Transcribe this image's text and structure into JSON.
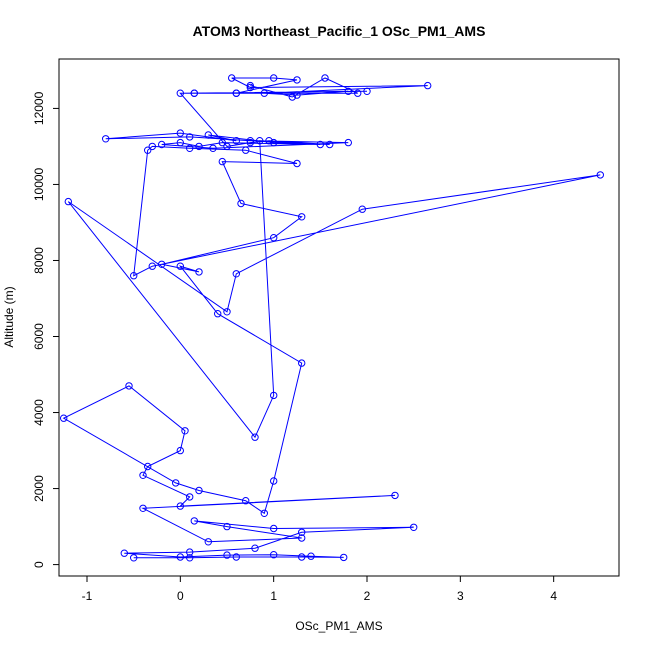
{
  "chart_data": {
    "type": "line",
    "title": "ATOM3 Northeast_Pacific_1 OSc_PM1_AMS",
    "xlabel": "OSc_PM1_AMS",
    "ylabel": "Altitude (m)",
    "xlim": [
      -1.3,
      4.7
    ],
    "ylim": [
      -300,
      13300
    ],
    "x_ticks": [
      -1,
      0,
      1,
      2,
      3,
      4
    ],
    "y_ticks": [
      0,
      2000,
      4000,
      6000,
      8000,
      10000,
      12000
    ],
    "grid": false,
    "legend": "none",
    "markers": "open-circle",
    "color": "#0000ff",
    "series": [
      {
        "x": [
          -0.5,
          0.1,
          0.6,
          1.3,
          1.75,
          1.4,
          1.0,
          0.5,
          0.0,
          -0.6,
          0.1,
          0.8,
          1.3,
          2.5,
          1.0,
          0.15,
          0.5,
          1.3,
          0.3,
          -0.4,
          2.3,
          0.0,
          0.1,
          -0.4,
          -0.35,
          0.0,
          0.05,
          -0.55,
          -1.25,
          -0.05,
          0.2,
          0.7,
          0.9,
          1.0,
          1.3,
          0.4,
          0.0,
          0.2,
          -0.2,
          1.0,
          1.3,
          0.65,
          0.45,
          1.25,
          0.7,
          0.1,
          -0.3,
          -0.35,
          -0.5,
          -0.3,
          4.5,
          1.95,
          0.6,
          0.5,
          -1.2,
          0.8,
          1.0,
          0.85,
          1.5,
          0.45,
          0.2,
          0.0,
          -0.2,
          0.35,
          1.8,
          0.75,
          0.1,
          -0.8,
          0.0,
          0.6,
          0.3,
          1.0,
          1.6,
          0.95,
          0.75,
          0.5,
          0.0,
          2.0,
          0.15,
          0.6,
          1.8,
          1.25,
          0.9,
          2.65,
          0.75,
          0.55,
          1.0,
          1.25,
          0.6,
          0.15,
          1.9,
          1.55,
          1.2,
          0.75
        ],
        "y": [
          180,
          180,
          200,
          200,
          190,
          220,
          260,
          250,
          200,
          300,
          330,
          430,
          850,
          980,
          950,
          1150,
          1000,
          700,
          600,
          1480,
          1820,
          1540,
          1780,
          2350,
          2580,
          3000,
          3520,
          4700,
          3850,
          2150,
          1950,
          1680,
          1350,
          2200,
          5300,
          6600,
          7850,
          7700,
          7900,
          8600,
          9150,
          9500,
          10600,
          10550,
          10900,
          10950,
          11000,
          10900,
          7600,
          7850,
          10250,
          9350,
          7650,
          6650,
          9550,
          3350,
          4450,
          11150,
          11050,
          11100,
          11000,
          11100,
          11050,
          10950,
          11100,
          11150,
          11250,
          11200,
          11350,
          11150,
          11300,
          11100,
          11050,
          11150,
          11100,
          11000,
          12400,
          12450,
          12400,
          12400,
          12450,
          12350,
          12400,
          12600,
          12550,
          12800,
          12800,
          12750,
          12400,
          12400,
          12400,
          12800,
          12300,
          12600
        ]
      }
    ]
  }
}
